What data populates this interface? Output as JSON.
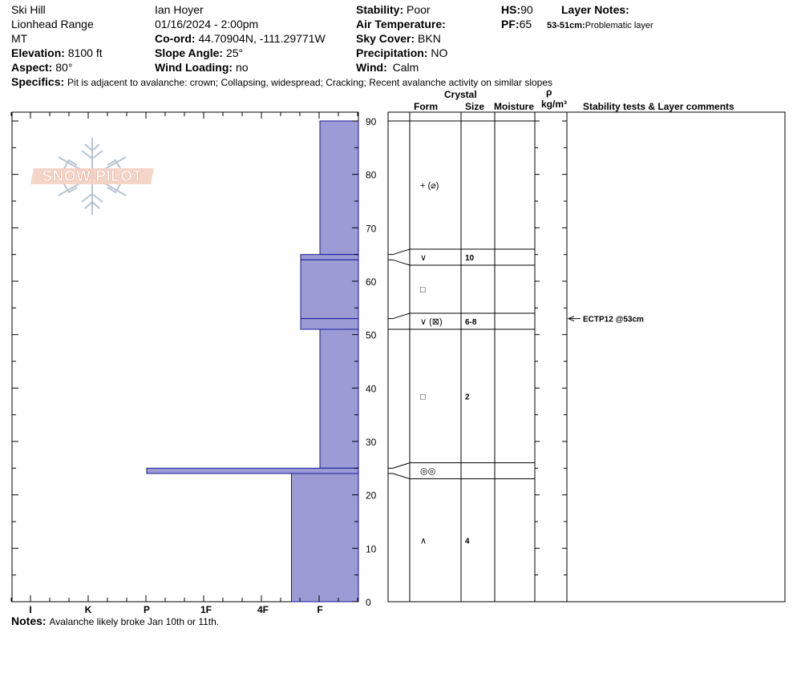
{
  "header": {
    "location": "Ski Hill",
    "range": "Lionhead Range",
    "state": "MT",
    "elevation_label": "Elevation:",
    "elevation_value": "8100 ft",
    "aspect_label": "Aspect:",
    "aspect_value": "80°",
    "observer": "Ian Hoyer",
    "datetime": "01/16/2024 - 2:00pm",
    "coord_label": "Co-ord:",
    "coord_value": "44.70904N, -111.29771W",
    "slope_label": "Slope Angle:",
    "slope_value": "25°",
    "wind_loading_label": "Wind Loading:",
    "wind_loading_value": "no",
    "stability_label": "Stability:",
    "stability_value": "Poor",
    "air_temp_label": "Air Temperature:",
    "sky_label": "Sky Cover:",
    "sky_value": "BKN",
    "precip_label": "Precipitation:",
    "precip_value": "NO",
    "wind_label": "Wind:",
    "wind_value": "Calm",
    "hs_label": "HS:",
    "hs_value": "90",
    "pf_label": "PF:",
    "pf_value": "65",
    "layer_notes_label": "Layer Notes:",
    "layer_note_range": "53-51cm:",
    "layer_note_text": "Problematic layer",
    "specifics_label": "Specifics:",
    "specifics_value": "Pit is adjacent to avalanche: crown; Collapsing, widespread; Cracking; Recent avalanche activity on similar slopes",
    "notes_label": "Notes:",
    "notes_value": "Avalanche likely broke Jan 10th or 11th."
  },
  "table_headers": {
    "crystal": "Crystal",
    "form": "Form",
    "size": "Size",
    "moisture": "Moisture",
    "rho": "ρ",
    "density_unit": "kg/m³",
    "stability": "Stability tests & Layer comments"
  },
  "logo_text": "SNOW PILOT",
  "colors": {
    "layer_fill": "#9b9bd6",
    "layer_stroke": "#1a1a99"
  },
  "chart_data": {
    "type": "bar",
    "title": "",
    "xlabel": "",
    "ylabel": "",
    "ylim": [
      0,
      90
    ],
    "y_ticks": [
      0,
      10,
      20,
      30,
      40,
      50,
      60,
      70,
      80,
      90
    ],
    "hardness_scale": [
      "I",
      "K",
      "P",
      "1F",
      "4F",
      "F"
    ],
    "layers": [
      {
        "top": 90,
        "bottom": 65,
        "hardness": "F"
      },
      {
        "top": 65,
        "bottom": 64,
        "hardness": "F-"
      },
      {
        "top": 64,
        "bottom": 53,
        "hardness": "F-"
      },
      {
        "top": 53,
        "bottom": 51,
        "hardness": "F-"
      },
      {
        "top": 51,
        "bottom": 25,
        "hardness": "F"
      },
      {
        "top": 25,
        "bottom": 24,
        "hardness": "P"
      },
      {
        "top": 24,
        "bottom": 0,
        "hardness": "4F-F"
      }
    ],
    "layer_details": [
      {
        "top": 90,
        "bottom": 66,
        "form": "+ (⌀)",
        "size": ""
      },
      {
        "top": 66,
        "bottom": 63,
        "form": "∨",
        "size": "10"
      },
      {
        "top": 63,
        "bottom": 54,
        "form": "□",
        "size": ""
      },
      {
        "top": 54,
        "bottom": 51,
        "form": "∨ (⊠)",
        "size": "6-8"
      },
      {
        "top": 51,
        "bottom": 26,
        "form": "□",
        "size": "2"
      },
      {
        "top": 26,
        "bottom": 23,
        "form": "◎◎",
        "size": ""
      },
      {
        "top": 23,
        "bottom": 0,
        "form": "∧",
        "size": "4"
      }
    ],
    "stability_tests": [
      {
        "depth": 53,
        "text": "ECTP12 @53cm"
      }
    ]
  }
}
